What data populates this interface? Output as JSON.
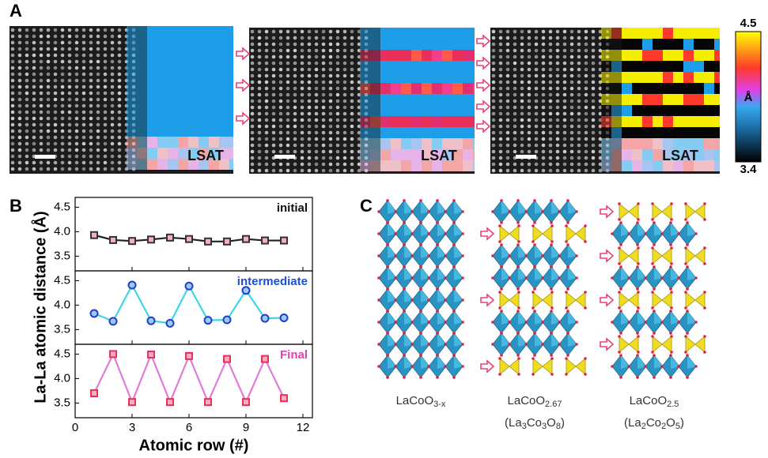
{
  "panel_labels": [
    "A",
    "B",
    "C"
  ],
  "panel_a": {
    "substrate_label": "LSAT",
    "colorbar": {
      "ticks": [
        4.5,
        3.4
      ],
      "unit": "Å"
    }
  },
  "panel_b": {
    "ylabel": "La-La atomic distance (Å)",
    "xlabel": "Atomic row (#)"
  },
  "chart_data": [
    {
      "type": "line",
      "x": [
        1,
        2,
        3,
        4,
        5,
        6,
        7,
        8,
        9,
        10,
        11
      ],
      "xlim": [
        0,
        12.5
      ],
      "xticks": [
        0,
        3,
        6,
        9,
        12
      ],
      "ylim": [
        3.2,
        4.7
      ],
      "yticks": [
        3.5,
        {
          "value": 4.0,
          "label": "4.0"
        },
        4.5
      ],
      "series": [
        {
          "name": "initial",
          "color": "#222222",
          "marker_color": "#333333",
          "label_color": "#111111",
          "marker": "square",
          "values": [
            3.93,
            3.83,
            3.81,
            3.84,
            3.88,
            3.85,
            3.8,
            3.8,
            3.85,
            3.82,
            3.82
          ]
        }
      ]
    },
    {
      "type": "line",
      "x": [
        1,
        2,
        3,
        4,
        5,
        6,
        7,
        8,
        9,
        10,
        11
      ],
      "xlim": [
        0,
        12.5
      ],
      "xticks": [
        0,
        3,
        6,
        9,
        12
      ],
      "ylim": [
        3.2,
        4.7
      ],
      "yticks": [
        3.5,
        {
          "value": 4.0,
          "label": "4.0"
        },
        4.5
      ],
      "series": [
        {
          "name": "intermediate",
          "color": "#3cd6e6",
          "marker_color": "#1f3fc8",
          "label_color": "#1f4fd0",
          "marker": "circle",
          "values": [
            3.83,
            3.67,
            4.41,
            3.68,
            3.63,
            4.39,
            3.69,
            3.7,
            4.3,
            3.73,
            3.74
          ]
        }
      ]
    },
    {
      "type": "line",
      "x": [
        1,
        2,
        3,
        4,
        5,
        6,
        7,
        8,
        9,
        10,
        11
      ],
      "xlim": [
        0,
        12.5
      ],
      "xticks": [
        0,
        3,
        6,
        9,
        12
      ],
      "ylim": [
        3.2,
        4.7
      ],
      "yticks": [
        3.5,
        {
          "value": 4.0,
          "label": "4.0"
        },
        4.5
      ],
      "series": [
        {
          "name": "Final",
          "color": "#e47ad8",
          "marker_color": "#e8305a",
          "label_color": "#e83cb4",
          "marker": "square",
          "values": [
            3.7,
            4.5,
            3.52,
            4.49,
            3.52,
            4.46,
            3.52,
            4.4,
            3.52,
            4.4,
            3.6
          ]
        }
      ]
    }
  ],
  "panel_c": {
    "structures": [
      {
        "formula": [
          "LaCoO",
          "3-x"
        ]
      },
      {
        "formula": [
          "LaCoO",
          "2.67"
        ],
        "alt_formula": [
          "(La",
          "3",
          "Co",
          "3",
          "O",
          "8",
          ")"
        ]
      },
      {
        "formula": [
          "LaCoO",
          "2.5"
        ],
        "alt_formula": [
          "(La",
          "2",
          "Co",
          "2",
          "O",
          "5",
          ")"
        ]
      }
    ]
  }
}
